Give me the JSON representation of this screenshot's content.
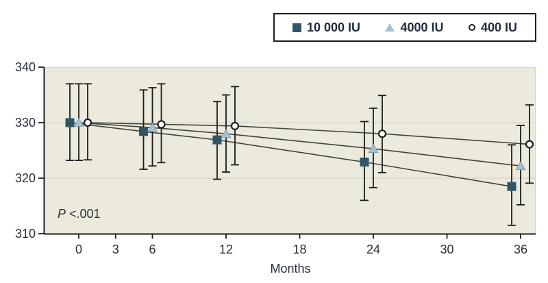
{
  "chart_data": {
    "type": "line",
    "x_axis": {
      "label": "Months",
      "ticks": [
        0,
        3,
        6,
        12,
        18,
        24,
        30,
        36
      ]
    },
    "y_axis": {
      "ticks": [
        340,
        330,
        320,
        310
      ],
      "range": [
        310,
        340
      ],
      "gridlines": [
        330,
        320
      ]
    },
    "x": [
      0,
      6,
      12,
      24,
      36
    ],
    "series": [
      {
        "name": "10 000 IU",
        "marker": "square",
        "color": "#2F5668",
        "values": [
          330.0,
          328.4,
          326.9,
          322.9,
          318.5
        ],
        "err_low": [
          323.2,
          321.6,
          319.8,
          316.0,
          311.5
        ],
        "err_high": [
          337.0,
          335.9,
          333.8,
          330.2,
          326.0
        ]
      },
      {
        "name": "4000 IU",
        "marker": "triangle",
        "color": "#A5C1D1",
        "values": [
          330.0,
          329.1,
          328.0,
          325.3,
          322.2
        ],
        "err_low": [
          323.2,
          322.2,
          321.1,
          318.3,
          315.2
        ],
        "err_high": [
          337.0,
          336.3,
          335.0,
          332.6,
          329.5
        ]
      },
      {
        "name": "400 IU",
        "marker": "circle",
        "color": "#FFFFFF",
        "values": [
          330.0,
          329.7,
          329.4,
          328.0,
          326.1
        ],
        "err_low": [
          323.3,
          322.8,
          322.4,
          321.0,
          319.1
        ],
        "err_high": [
          337.0,
          337.0,
          336.5,
          334.9,
          333.2
        ]
      }
    ],
    "annotation": {
      "label": "P",
      "value": " <.001"
    },
    "legend_position": "top-right",
    "styles": {
      "plot_bg": "#ECE9DD",
      "plot_border": "#D3D0C4",
      "gridline": "#DAD7C9",
      "axis": "#1B1D1B",
      "series_line": "#40443C",
      "error_bar": "#1B1D1B",
      "tick_text": "#2A2F38",
      "triangle_edge": "#7E98A7"
    }
  }
}
